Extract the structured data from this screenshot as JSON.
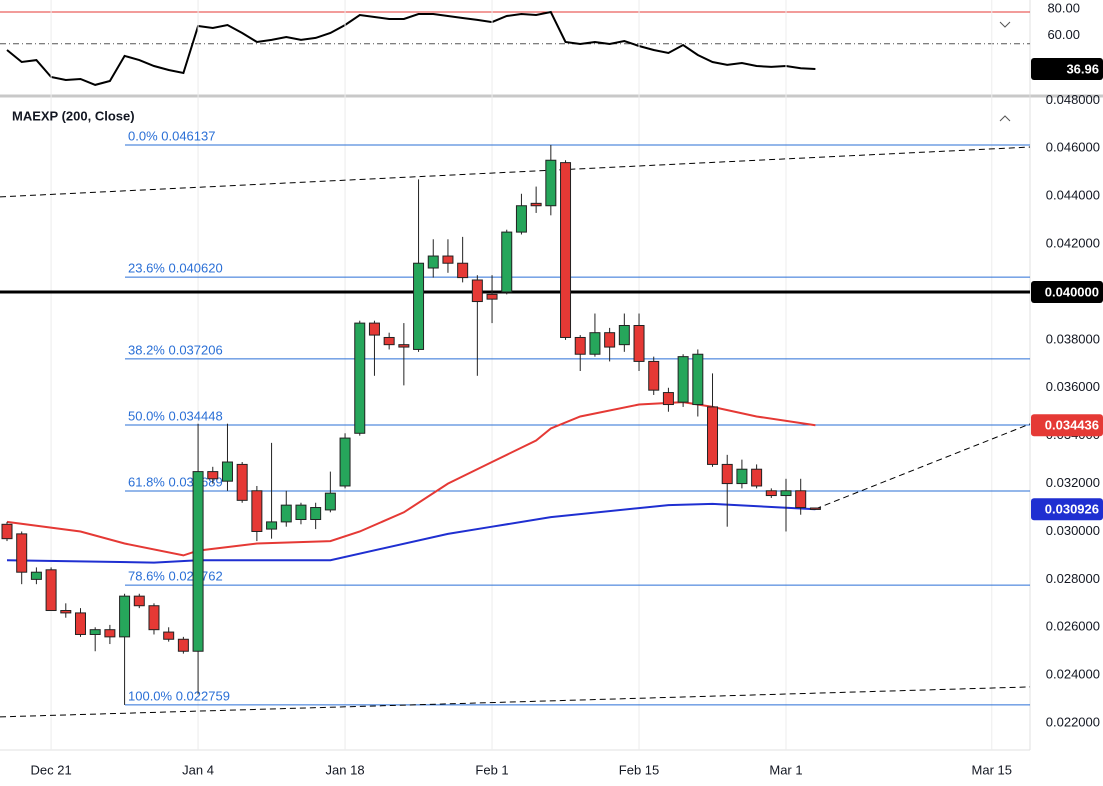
{
  "chart_data": [
    {
      "type": "line",
      "xlim": [
        -0.476,
        69.6
      ],
      "ylim": [
        17.3,
        89.06
      ],
      "yticks": [
        {
          "value": 80,
          "label": "80.00"
        },
        {
          "value": 60,
          "label": "60.00"
        }
      ],
      "levels": [
        {
          "value": 80,
          "color": "#e53935",
          "style": "solid"
        },
        {
          "value": 56,
          "color": "#555555",
          "style": "dashdot"
        }
      ],
      "series": [
        {
          "color": "#000000",
          "last_label": "36.96",
          "x": [
            0,
            1,
            2,
            3,
            4,
            5,
            6,
            7,
            8,
            9,
            10,
            11,
            12,
            13,
            14,
            15,
            16,
            17,
            18,
            19,
            20,
            21,
            22,
            23,
            24,
            25,
            26,
            27,
            28,
            29,
            30,
            31,
            32,
            33,
            34,
            35,
            36,
            37,
            38,
            39,
            40,
            41,
            42,
            43,
            44,
            45,
            46,
            47,
            48,
            49,
            50,
            51,
            52,
            53,
            54,
            55
          ],
          "values": [
            51.3,
            42.2,
            43.7,
            30.9,
            28.6,
            29.4,
            24.9,
            27.9,
            46.8,
            43.7,
            39.2,
            36.2,
            33.9,
            69.4,
            67.9,
            70.2,
            64.1,
            57.3,
            58.9,
            61.1,
            58.9,
            60.4,
            64.1,
            70.2,
            77.7,
            76.2,
            74.7,
            74.7,
            78.5,
            78.5,
            77.0,
            75.5,
            74.0,
            72.4,
            77.0,
            78.5,
            77.7,
            80.0,
            57.3,
            55.8,
            57.3,
            55.8,
            58.1,
            54.3,
            51.3,
            49.0,
            55.1,
            47.5,
            42.2,
            40.0,
            41.5,
            39.2,
            38.5,
            39.2,
            37.5,
            36.96
          ]
        }
      ]
    },
    {
      "type": "candlestick",
      "xlim": [
        -0.476,
        69.6
      ],
      "ylim": [
        0.02096,
        0.04814
      ],
      "xticks": [
        {
          "value": 3,
          "label": "Dec 21"
        },
        {
          "value": 13,
          "label": "Jan 4"
        },
        {
          "value": 23,
          "label": "Jan 18"
        },
        {
          "value": 33,
          "label": "Feb 1"
        },
        {
          "value": 43,
          "label": "Feb 15"
        },
        {
          "value": 53,
          "label": "Mar 1"
        },
        {
          "value": 67,
          "label": "Mar 15"
        }
      ],
      "yticks": [
        {
          "value": 0.048,
          "label": "0.048000"
        },
        {
          "value": 0.046,
          "label": "0.046000"
        },
        {
          "value": 0.044,
          "label": "0.044000"
        },
        {
          "value": 0.042,
          "label": "0.042000"
        },
        {
          "value": 0.04,
          "label": "0.040000"
        },
        {
          "value": 0.038,
          "label": "0.038000"
        },
        {
          "value": 0.036,
          "label": "0.036000"
        },
        {
          "value": 0.034,
          "label": "0.034000"
        },
        {
          "value": 0.032,
          "label": "0.032000"
        },
        {
          "value": 0.03,
          "label": "0.030000"
        },
        {
          "value": 0.028,
          "label": "0.028000"
        },
        {
          "value": 0.026,
          "label": "0.026000"
        },
        {
          "value": 0.024,
          "label": "0.024000"
        },
        {
          "value": 0.022,
          "label": "0.022000"
        }
      ],
      "up_color": "#26a65b",
      "down_color": "#e53935",
      "x": [
        0,
        1,
        2,
        3,
        4,
        5,
        6,
        7,
        8,
        9,
        10,
        11,
        12,
        13,
        14,
        15,
        16,
        17,
        18,
        19,
        20,
        21,
        22,
        23,
        24,
        25,
        26,
        27,
        28,
        29,
        30,
        31,
        32,
        33,
        34,
        35,
        36,
        37,
        38,
        39,
        40,
        41,
        42,
        43,
        44,
        45,
        46,
        47,
        48,
        49,
        50,
        51,
        52,
        53,
        54,
        55
      ],
      "open": [
        0.0303,
        0.0299,
        0.028,
        0.0284,
        0.0267,
        0.0266,
        0.0257,
        0.0259,
        0.0256,
        0.0273,
        0.0269,
        0.0258,
        0.0255,
        0.025,
        0.0325,
        0.0321,
        0.0328,
        0.0317,
        0.0301,
        0.0304,
        0.0305,
        0.0305,
        0.0309,
        0.0319,
        0.0341,
        0.0387,
        0.0381,
        0.0378,
        0.0376,
        0.041,
        0.0415,
        0.0412,
        0.0405,
        0.0399,
        0.04,
        0.0425,
        0.0437,
        0.0436,
        0.0454,
        0.0381,
        0.0374,
        0.0383,
        0.0378,
        0.0386,
        0.0371,
        0.0358,
        0.0354,
        0.0353,
        0.0352,
        0.0328,
        0.032,
        0.0326,
        0.0317,
        0.0315,
        0.0317,
        0.03098
      ],
      "high": [
        0.0304,
        0.03,
        0.0285,
        0.0285,
        0.027,
        0.0268,
        0.026,
        0.0261,
        0.0274,
        0.0274,
        0.027,
        0.026,
        0.0256,
        0.0345,
        0.0327,
        0.0345,
        0.0329,
        0.0319,
        0.0337,
        0.0317,
        0.0312,
        0.0312,
        0.0325,
        0.0341,
        0.0388,
        0.0388,
        0.0383,
        0.0387,
        0.0447,
        0.0422,
        0.0422,
        0.0423,
        0.0407,
        0.0407,
        0.0426,
        0.0441,
        0.0444,
        0.046137,
        0.0455,
        0.0382,
        0.0391,
        0.0385,
        0.0391,
        0.0391,
        0.0373,
        0.036,
        0.0374,
        0.0376,
        0.0366,
        0.0332,
        0.033,
        0.0328,
        0.0318,
        0.0322,
        0.0322,
        0.031
      ],
      "low": [
        0.0296,
        0.0278,
        0.0278,
        0.0267,
        0.0264,
        0.0256,
        0.025,
        0.0253,
        0.022759,
        0.0268,
        0.0257,
        0.0254,
        0.0249,
        0.0232,
        0.032,
        0.0317,
        0.0312,
        0.0296,
        0.0297,
        0.0302,
        0.0303,
        0.0301,
        0.0308,
        0.0318,
        0.034,
        0.0365,
        0.0376,
        0.0361,
        0.0375,
        0.0406,
        0.0408,
        0.0404,
        0.0365,
        0.0387,
        0.0399,
        0.0424,
        0.0433,
        0.0432,
        0.038,
        0.0367,
        0.0373,
        0.0371,
        0.0375,
        0.0367,
        0.0357,
        0.035,
        0.0352,
        0.0348,
        0.0327,
        0.0302,
        0.0318,
        0.0318,
        0.0314,
        0.03,
        0.0307,
        0.0309
      ],
      "close": [
        0.0297,
        0.0283,
        0.0283,
        0.0267,
        0.0266,
        0.0257,
        0.0259,
        0.0256,
        0.0273,
        0.0269,
        0.0259,
        0.0255,
        0.025,
        0.0325,
        0.0322,
        0.0329,
        0.0313,
        0.03,
        0.0304,
        0.0311,
        0.0311,
        0.031,
        0.0316,
        0.0339,
        0.0387,
        0.0382,
        0.0378,
        0.0377,
        0.0412,
        0.0415,
        0.0412,
        0.0406,
        0.0396,
        0.0397,
        0.0425,
        0.0436,
        0.0436,
        0.0455,
        0.0381,
        0.0374,
        0.0383,
        0.0377,
        0.0386,
        0.0371,
        0.0359,
        0.0353,
        0.0373,
        0.0374,
        0.0328,
        0.032,
        0.0326,
        0.0319,
        0.0315,
        0.0317,
        0.031,
        0.03092
      ],
      "series": [
        {
          "color": "#e53935",
          "last_label": "0.034436",
          "x": [
            0,
            5,
            8,
            12,
            13,
            17,
            22,
            24,
            27,
            30,
            33,
            36,
            37,
            39,
            43,
            46,
            48,
            51,
            55
          ],
          "values": [
            0.0304,
            0.03,
            0.0295,
            0.029,
            0.0292,
            0.0295,
            0.0296,
            0.03,
            0.0308,
            0.032,
            0.0329,
            0.0338,
            0.0343,
            0.0348,
            0.0353,
            0.0354,
            0.0352,
            0.0348,
            0.034436
          ]
        },
        {
          "name": "MAEXP (200, Close)",
          "color": "#1f2fd1",
          "last_label": "0.030926",
          "x": [
            0,
            10,
            13,
            22,
            30,
            33,
            37,
            45,
            48,
            55
          ],
          "values": [
            0.0288,
            0.0287,
            0.0288,
            0.0288,
            0.0299,
            0.0302,
            0.0306,
            0.0311,
            0.03115,
            0.030926
          ]
        }
      ],
      "hlines": [
        {
          "value": 0.04,
          "label": "0.040000",
          "color": "#000000"
        }
      ],
      "fib_levels": [
        {
          "value": 0.046137,
          "label": "0.0% 0.046137"
        },
        {
          "value": 0.04062,
          "label": "23.6% 0.040620"
        },
        {
          "value": 0.037206,
          "label": "38.2% 0.037206"
        },
        {
          "value": 0.034448,
          "label": "50.0% 0.034448"
        },
        {
          "value": 0.031689,
          "label": "61.8% 0.031689"
        },
        {
          "value": 0.027762,
          "label": "78.6% 0.027762"
        },
        {
          "value": 0.022759,
          "label": "100.0% 0.022759"
        }
      ],
      "fib_color": "#2a6fd6",
      "trendlines": [
        {
          "x": [
            -0.476,
            69.6
          ],
          "y": [
            0.04397,
            0.04605
          ]
        },
        {
          "x": [
            -0.476,
            69.6
          ],
          "y": [
            0.02226,
            0.02351
          ]
        },
        {
          "x": [
            55,
            69.6
          ],
          "y": [
            0.03094,
            0.03449
          ]
        }
      ]
    }
  ]
}
